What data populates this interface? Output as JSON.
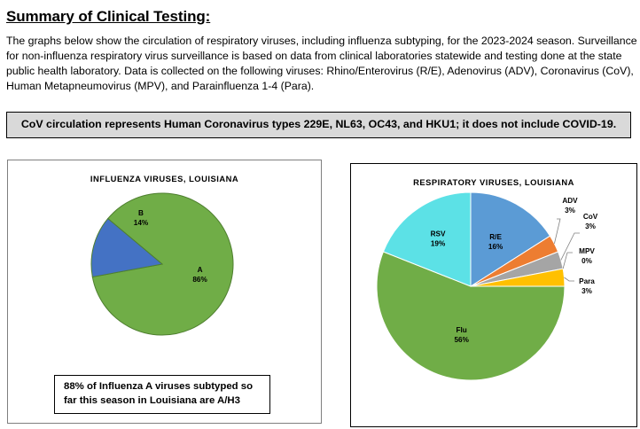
{
  "header": {
    "title": "Summary of Clinical Testing:",
    "intro": "The graphs below show the circulation of respiratory viruses, including influenza subtyping, for the 2023-2024 season. Surveillance for non-influenza respiratory virus surveillance is based on data from clinical laboratories statewide and testing done at the state public health laboratory. Data is collected on the following viruses: Rhino/Enterovirus (R/E), Adenovirus (ADV), Coronavirus (CoV), Human Metapneumovirus (MPV), and Parainfluenza 1-4 (Para).",
    "note": "CoV circulation represents Human Coronavirus types 229E, NL63, OC43, and HKU1; it does not include COVID-19."
  },
  "callout": "88% of Influenza A viruses subtyped so far this season in Louisiana are A/H3",
  "chart_data": [
    {
      "type": "pie",
      "title": "INFLUENZA VIRUSES, LOUISIANA",
      "slices": [
        {
          "label": "A",
          "value": 86,
          "value_label": "86%",
          "color": "#70ad47"
        },
        {
          "label": "B",
          "value": 14,
          "value_label": "14%",
          "color": "#4472c4"
        }
      ]
    },
    {
      "type": "pie",
      "title": "RESPIRATORY VIRUSES, LOUISIANA",
      "slices": [
        {
          "label": "R/E",
          "value": 16,
          "value_label": "16%",
          "color": "#5b9bd5"
        },
        {
          "label": "ADV",
          "value": 3,
          "value_label": "3%",
          "color": "#ed7d31"
        },
        {
          "label": "CoV",
          "value": 3,
          "value_label": "3%",
          "color": "#a5a5a5"
        },
        {
          "label": "MPV",
          "value": 0,
          "value_label": "0%",
          "color": "#7f7f7f"
        },
        {
          "label": "Para",
          "value": 3,
          "value_label": "3%",
          "color": "#ffc000"
        },
        {
          "label": "Flu",
          "value": 56,
          "value_label": "56%",
          "color": "#70ad47"
        },
        {
          "label": "RSV",
          "value": 19,
          "value_label": "19%",
          "color": "#5ce1e6"
        }
      ]
    }
  ]
}
